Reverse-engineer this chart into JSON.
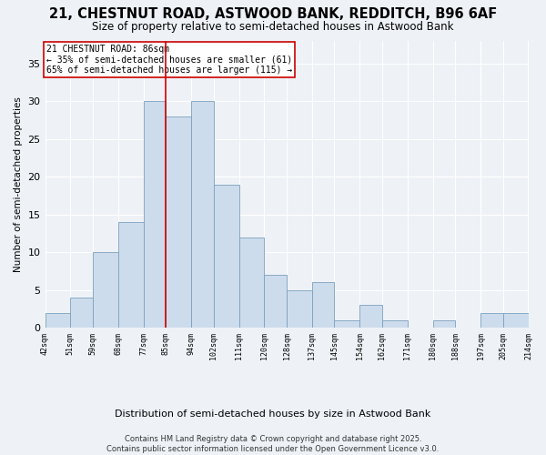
{
  "title": "21, CHESTNUT ROAD, ASTWOOD BANK, REDDITCH, B96 6AF",
  "subtitle": "Size of property relative to semi-detached houses in Astwood Bank",
  "xlabel": "Distribution of semi-detached houses by size in Astwood Bank",
  "ylabel": "Number of semi-detached properties",
  "bins": [
    42,
    51,
    59,
    68,
    77,
    85,
    94,
    102,
    111,
    120,
    128,
    137,
    145,
    154,
    162,
    171,
    180,
    188,
    197,
    205,
    214
  ],
  "counts": [
    2,
    4,
    10,
    14,
    30,
    28,
    30,
    19,
    12,
    7,
    5,
    6,
    1,
    3,
    1,
    0,
    1,
    0,
    2,
    2
  ],
  "bar_color": "#cddcec",
  "bar_edge_color": "#7aa0be",
  "vline_x": 85,
  "vline_color": "#cc0000",
  "annotation_title": "21 CHESTNUT ROAD: 86sqm",
  "annotation_line1": "← 35% of semi-detached houses are smaller (61)",
  "annotation_line2": "65% of semi-detached houses are larger (115) →",
  "annotation_box_color": "#cc0000",
  "ylim": [
    0,
    38
  ],
  "yticks": [
    0,
    5,
    10,
    15,
    20,
    25,
    30,
    35
  ],
  "footer_line1": "Contains HM Land Registry data © Crown copyright and database right 2025.",
  "footer_line2": "Contains public sector information licensed under the Open Government Licence v3.0.",
  "bg_color": "#eef2f7",
  "plot_bg_color": "#eef2f7"
}
